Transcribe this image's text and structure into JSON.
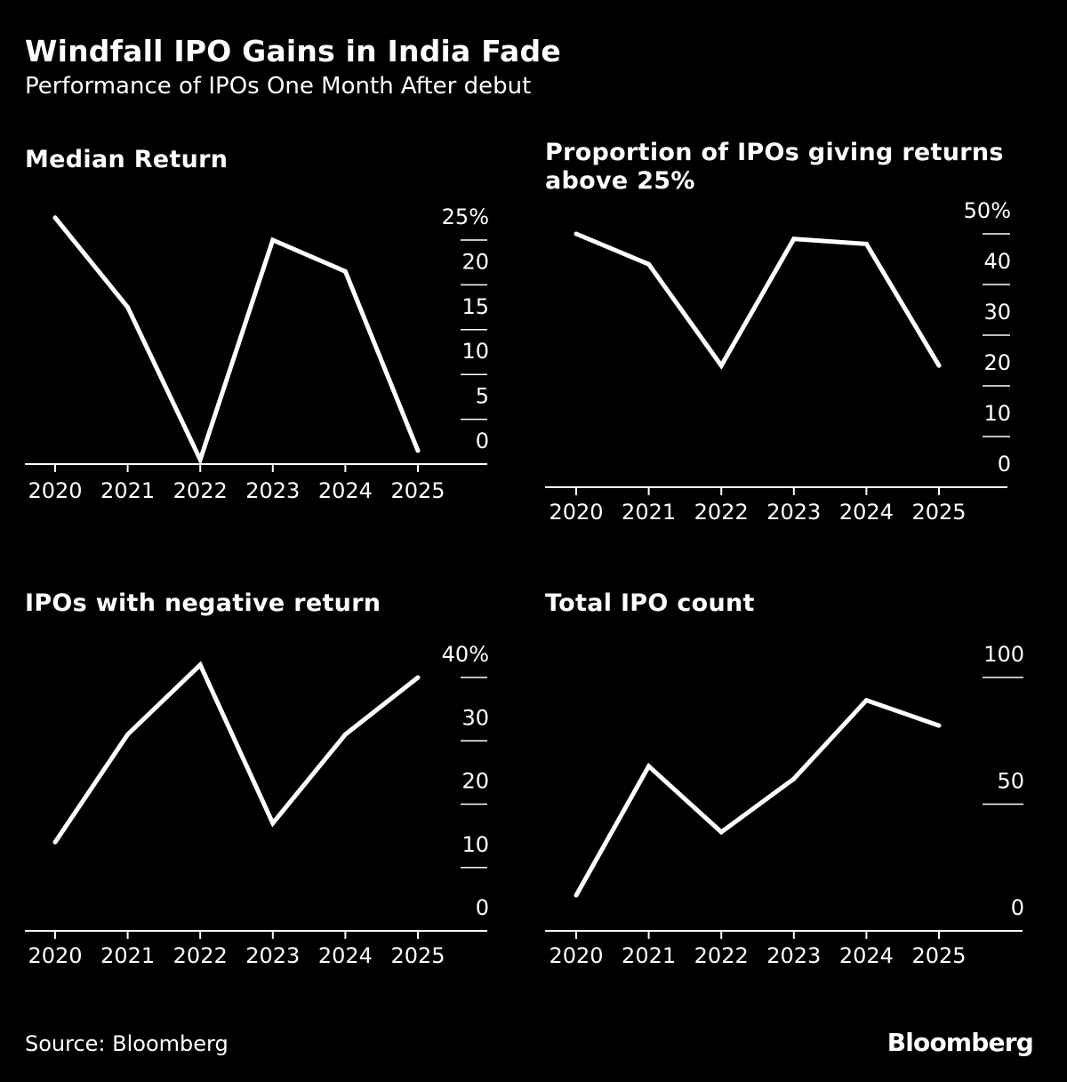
{
  "header": {
    "title": "Windfall IPO Gains in India Fade",
    "subtitle": "Performance of IPOs One Month After debut"
  },
  "footer": {
    "source": "Source: Bloomberg",
    "brand": "Bloomberg"
  },
  "colors": {
    "background": "#000000",
    "line": "#ffffff",
    "text": "#ffffff"
  },
  "chart_data": [
    {
      "type": "line",
      "title": "Median Return",
      "x": [
        "2020",
        "2021",
        "2022",
        "2023",
        "2024",
        "2025"
      ],
      "values": [
        27.5,
        17.5,
        0.5,
        25,
        21.5,
        1.5
      ],
      "ylim": [
        0,
        25
      ],
      "yticks": [
        0,
        5,
        10,
        15,
        20,
        25
      ],
      "ytick_labels": [
        "0",
        "5",
        "10",
        "15",
        "20",
        "25%"
      ],
      "grid": false
    },
    {
      "type": "line",
      "title": "Proportion of IPOs giving returns above 25%",
      "x": [
        "2020",
        "2021",
        "2022",
        "2023",
        "2024",
        "2025"
      ],
      "values": [
        50,
        44,
        24,
        49,
        48,
        24
      ],
      "ylim": [
        0,
        50
      ],
      "yticks": [
        0,
        10,
        20,
        30,
        40,
        50
      ],
      "ytick_labels": [
        "0",
        "10",
        "20",
        "30",
        "40",
        "50%"
      ],
      "grid": false
    },
    {
      "type": "line",
      "title": "IPOs with negative return",
      "x": [
        "2020",
        "2021",
        "2022",
        "2023",
        "2024",
        "2025"
      ],
      "values": [
        14,
        31,
        42,
        17,
        31,
        40
      ],
      "ylim": [
        0,
        40
      ],
      "yticks": [
        0,
        10,
        20,
        30,
        40
      ],
      "ytick_labels": [
        "0",
        "10",
        "20",
        "30",
        "40%"
      ],
      "grid": false
    },
    {
      "type": "line",
      "title": "Total IPO count",
      "x": [
        "2020",
        "2021",
        "2022",
        "2023",
        "2024",
        "2025"
      ],
      "values": [
        14,
        65,
        39,
        60,
        91,
        81
      ],
      "ylim": [
        0,
        100
      ],
      "yticks": [
        0,
        50,
        100
      ],
      "ytick_labels": [
        "0",
        "50",
        "100"
      ],
      "grid": false
    }
  ]
}
